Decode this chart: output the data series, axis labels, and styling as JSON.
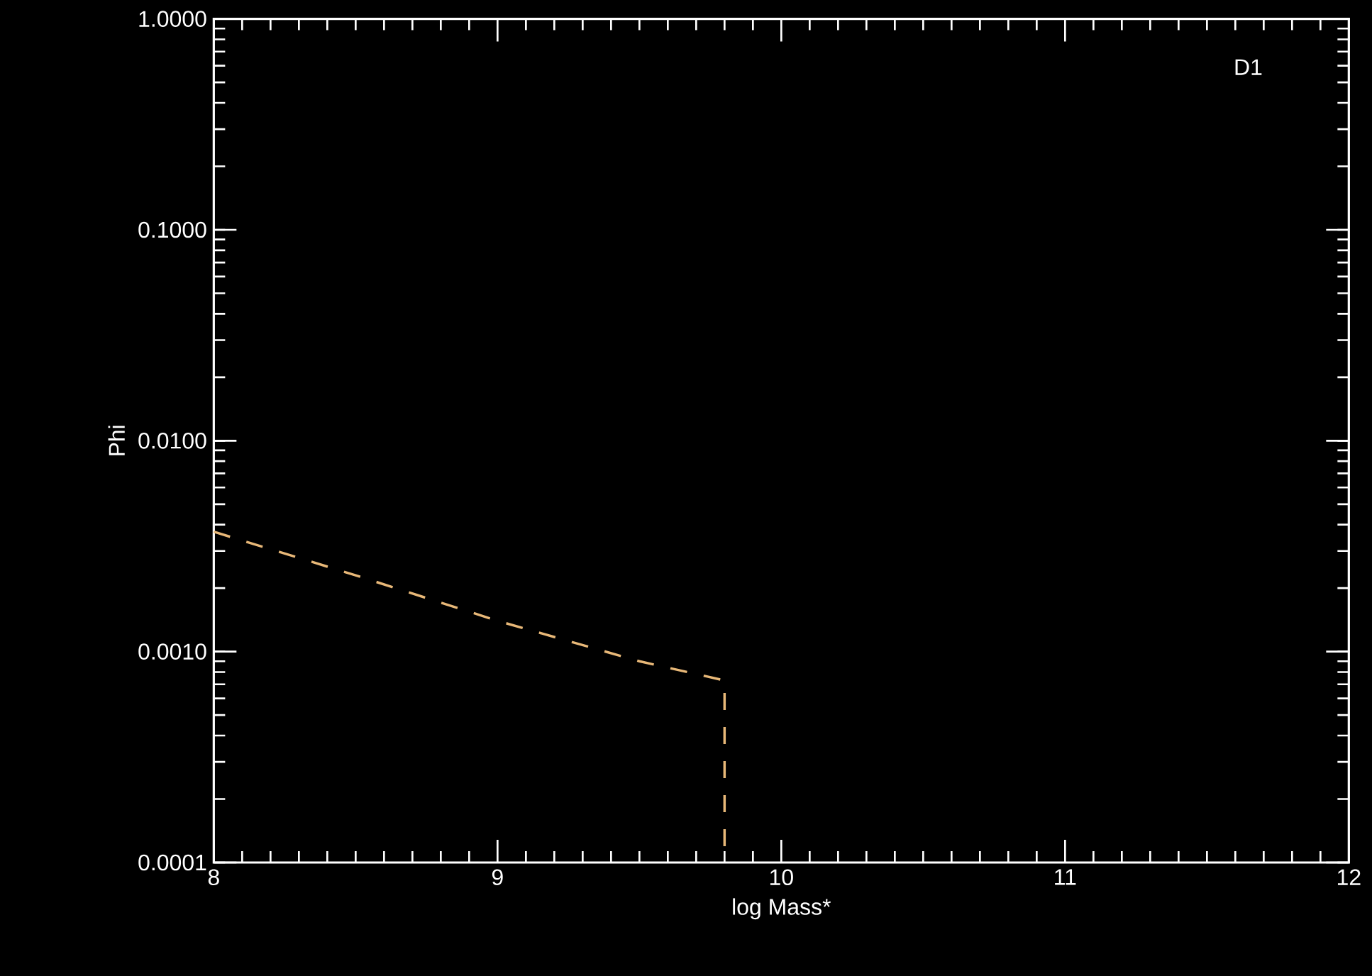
{
  "chart_data": {
    "type": "line",
    "xlabel": "log Mass*",
    "ylabel": "Phi",
    "annotations": [
      "D1"
    ],
    "log": "y",
    "xlim": [
      8,
      12
    ],
    "ylim": [
      0.0001,
      1
    ],
    "xticks": [
      8,
      9,
      10,
      11,
      12
    ],
    "yticks": [
      {
        "value": 0.0001,
        "label": "0.0001"
      },
      {
        "value": 0.001,
        "label": "0.0010"
      },
      {
        "value": 0.01,
        "label": "0.0100"
      },
      {
        "value": 0.1,
        "label": "0.1000"
      },
      {
        "value": 1,
        "label": "1.0000"
      }
    ],
    "line_style": "dashed",
    "series": [
      {
        "color": "#e8b878",
        "x": [
          8.0,
          8.5,
          9.0,
          9.5,
          9.8,
          9.8
        ],
        "values": [
          0.0037,
          0.0023,
          0.0014,
          0.0009,
          0.00073,
          0.0001
        ]
      }
    ]
  }
}
